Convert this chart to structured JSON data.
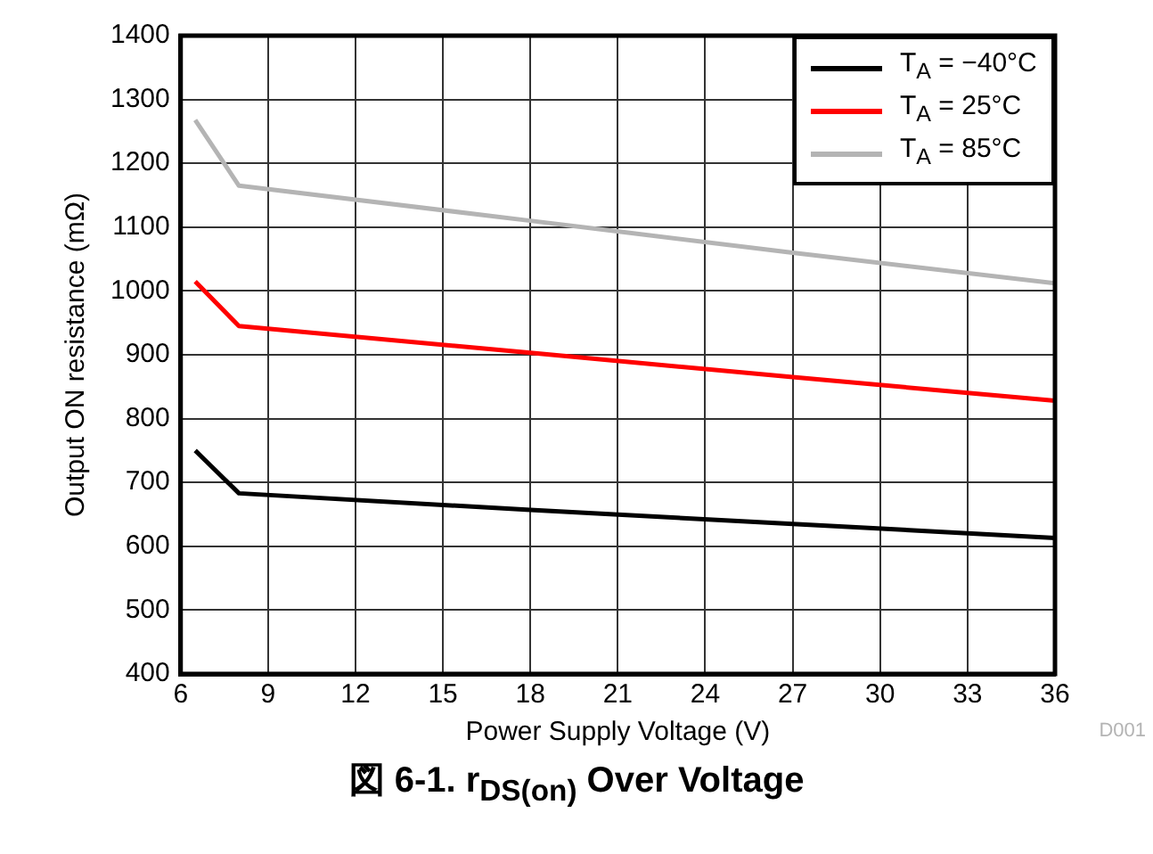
{
  "chart_data": {
    "type": "line",
    "title": "図 6-1. r$_{DS(on)}$ Over Voltage",
    "xlabel": "Power Supply Voltage (V)",
    "ylabel": "Output ON resistance (mΩ)",
    "annotations": [
      "D001"
    ],
    "x": [
      6.5,
      8,
      18,
      27,
      36
    ],
    "series": [
      {
        "name": "T$_{A}$ = −40°C",
        "color": "#000000",
        "values": [
          750,
          683,
          657,
          635,
          613
        ]
      },
      {
        "name": "T$_{A}$ = 25°C",
        "color": "#ff0000",
        "values": [
          1015,
          945,
          903,
          865,
          828
        ]
      },
      {
        "name": "T$_{A}$ = 85°C",
        "color": "#b4b4b4",
        "values": [
          1268,
          1165,
          1110,
          1060,
          1012
        ]
      }
    ],
    "xlim": [
      6,
      36
    ],
    "xticks": [
      6,
      9,
      12,
      15,
      18,
      21,
      24,
      27,
      30,
      33,
      36
    ],
    "ylim": [
      400,
      1400
    ],
    "yticks": [
      400,
      500,
      600,
      700,
      800,
      900,
      1000,
      1100,
      1200,
      1300,
      1400
    ],
    "grid": true,
    "legend": "top right",
    "marker": "none",
    "line_style": "solid"
  }
}
